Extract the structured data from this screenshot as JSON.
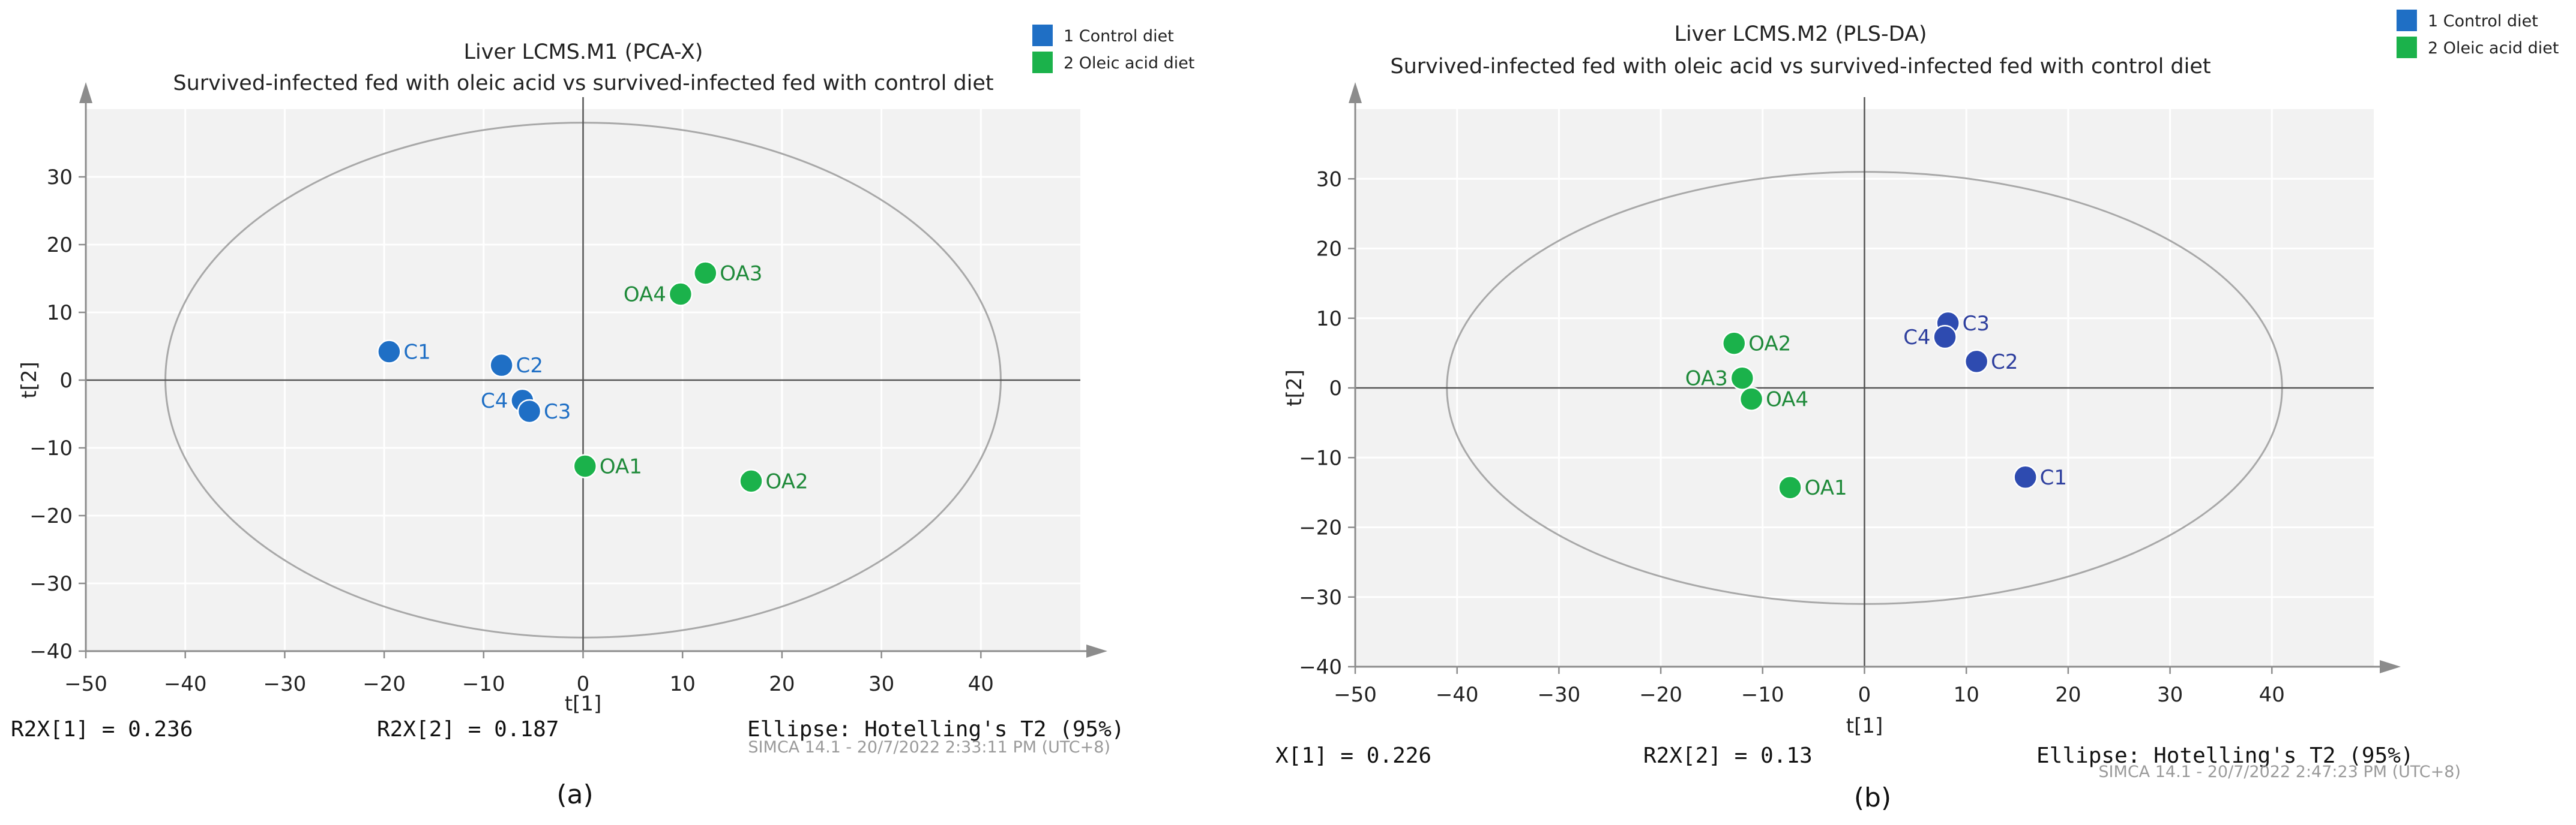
{
  "chart_data": [
    {
      "type": "scatter",
      "panel_label": "(a)",
      "title": "Liver LCMS.M1 (PCA-X)",
      "subtitle": "Survived-infected fed with oleic acid vs survived-infected fed with control diet",
      "xlabel": "t[1]",
      "ylabel": "t[2]",
      "xlim": [
        -50,
        50
      ],
      "ylim": [
        -40,
        40
      ],
      "xticks": [
        -50,
        -40,
        -30,
        -20,
        -10,
        0,
        10,
        20,
        30,
        40
      ],
      "yticks": [
        -40,
        -30,
        -20,
        -10,
        0,
        10,
        20,
        30
      ],
      "ellipse": {
        "rx": 42,
        "ry": 38
      },
      "legend": [
        {
          "label": "1 Control diet",
          "color": "#1f6fc5"
        },
        {
          "label": "2 Oleic acid diet",
          "color": "#1bb24b"
        }
      ],
      "series": [
        {
          "name": "1 Control diet",
          "color": "#1f6fc5",
          "label_color": "#1f6fc5",
          "points": [
            {
              "label": "C1",
              "x": -19.5,
              "y": 4.2,
              "label_side": "right"
            },
            {
              "label": "C2",
              "x": -8.2,
              "y": 2.2,
              "label_side": "right"
            },
            {
              "label": "C4",
              "x": -6.1,
              "y": -3.0,
              "label_side": "left"
            },
            {
              "label": "C3",
              "x": -5.4,
              "y": -4.6,
              "label_side": "right"
            }
          ]
        },
        {
          "name": "2 Oleic acid diet",
          "color": "#1bb24b",
          "label_color": "#1f8a3a",
          "points": [
            {
              "label": "OA3",
              "x": 12.3,
              "y": 15.8,
              "label_side": "right"
            },
            {
              "label": "OA4",
              "x": 9.8,
              "y": 12.7,
              "label_side": "left"
            },
            {
              "label": "OA1",
              "x": 0.2,
              "y": -12.7,
              "label_side": "right"
            },
            {
              "label": "OA2",
              "x": 16.9,
              "y": -14.9,
              "label_side": "right"
            }
          ]
        }
      ],
      "stats": {
        "r2x1": "R2X[1] = 0.236",
        "r2x2": "R2X[2] = 0.187",
        "ellipse": "Ellipse: Hotelling's T2 (95%)"
      },
      "footer": "SIMCA 14.1 - 20/7/2022 2:33:11 PM (UTC+8)"
    },
    {
      "type": "scatter",
      "panel_label": "(b)",
      "title": "Liver LCMS.M2 (PLS-DA)",
      "subtitle": "Survived-infected fed with oleic acid vs survived-infected fed with control diet",
      "xlabel": "t[1]",
      "ylabel": "t[2]",
      "xlim": [
        -50,
        50
      ],
      "ylim": [
        -40,
        40
      ],
      "xticks": [
        -50,
        -40,
        -30,
        -20,
        -10,
        0,
        10,
        20,
        30,
        40
      ],
      "yticks": [
        -40,
        -30,
        -20,
        -10,
        0,
        10,
        20,
        30
      ],
      "ellipse": {
        "rx": 41,
        "ry": 31
      },
      "legend": [
        {
          "label": "1 Control diet",
          "color": "#1f6fc5"
        },
        {
          "label": "2 Oleic acid diet",
          "color": "#1bb24b"
        }
      ],
      "series": [
        {
          "name": "1 Control diet",
          "color": "#2e4bb0",
          "label_color": "#2e3f9e",
          "points": [
            {
              "label": "C3",
              "x": 8.2,
              "y": 9.3,
              "label_side": "right"
            },
            {
              "label": "C4",
              "x": 7.9,
              "y": 7.3,
              "label_side": "left"
            },
            {
              "label": "C2",
              "x": 11.0,
              "y": 3.8,
              "label_side": "right"
            },
            {
              "label": "C1",
              "x": 15.8,
              "y": -12.8,
              "label_side": "right"
            }
          ]
        },
        {
          "name": "2 Oleic acid diet",
          "color": "#1bb24b",
          "label_color": "#1f8a3a",
          "points": [
            {
              "label": "OA2",
              "x": -12.8,
              "y": 6.4,
              "label_side": "right"
            },
            {
              "label": "OA3",
              "x": -12.0,
              "y": 1.4,
              "label_side": "left"
            },
            {
              "label": "OA4",
              "x": -11.1,
              "y": -1.6,
              "label_side": "right"
            },
            {
              "label": "OA1",
              "x": -7.3,
              "y": -14.3,
              "label_side": "right"
            }
          ]
        }
      ],
      "stats": {
        "r2x1": "X[1] = 0.226",
        "r2x2": "R2X[2] = 0.13",
        "ellipse": "Ellipse: Hotelling's T2 (95%)"
      },
      "footer": "SIMCA 14.1 - 20/7/2022 2:47:23 PM (UTC+8)"
    }
  ],
  "colors": {
    "plot_background": "#f2f2f2",
    "axis": "#8c8c8c",
    "ellipse": "#a8a8a8",
    "grid": "#ffffff"
  }
}
